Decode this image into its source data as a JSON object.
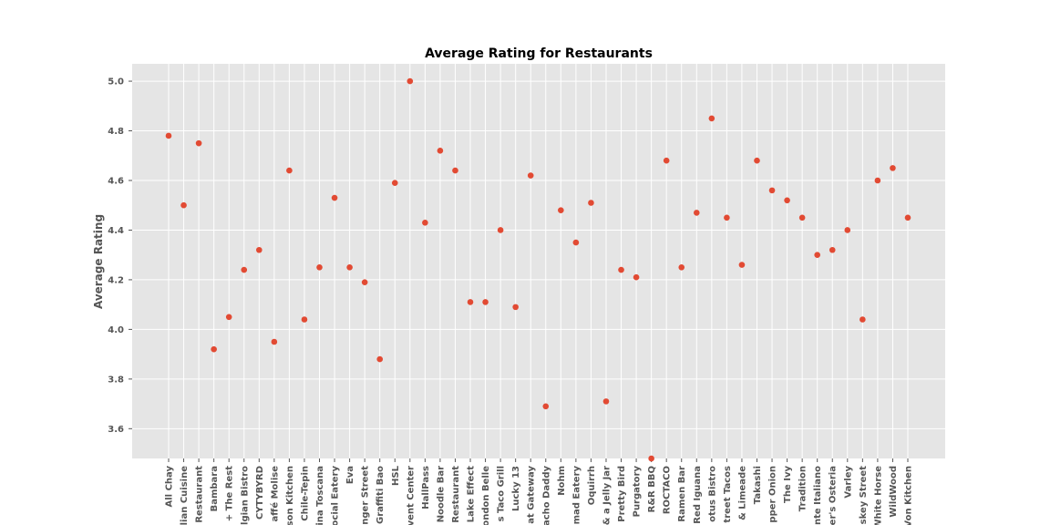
{
  "chart_data": {
    "type": "scatter",
    "title": "Average Rating for Restaurants",
    "xlabel": "",
    "ylabel": "Average Rating",
    "ylim": [
      3.48,
      5.07
    ],
    "yticks": [
      "3.6",
      "3.8",
      "4.0",
      "4.2",
      "4.4",
      "4.6",
      "4.8",
      "5.0"
    ],
    "grid": true,
    "colors": {
      "point": "#e24a33",
      "plot_bg": "#e5e5e5",
      "grid": "#ffffff"
    },
    "categories": [
      "All Chay",
      "elian Cuisine",
      "Restaurant",
      "Bambara",
      "+ The Rest",
      "lgian Bistro",
      "CYTYBYRD",
      "affé Molise",
      "son Kitchen",
      "Chile-Tepin",
      "ina Toscana",
      "ocial Eatery",
      "Eva",
      "nger Street",
      "Graffiti Bao",
      "HSL",
      "vent Center",
      "HallPass",
      "Noodle Bar",
      "Restaurant",
      "Lake Effect",
      "ondon Belle",
      "s Taco Grill",
      "Lucky 13",
      "at Gateway",
      "acho Daddy",
      "Nohm",
      "mad Eatery",
      "Oquirrh",
      "& a Jelly Jar",
      "Pretty Bird",
      "Purgatory",
      "R&R BBQ",
      "ROCTACO",
      "Ramen Bar",
      "Red Iguana",
      "otus Bistro",
      "treet Tacos",
      "& Limeade",
      "Takashi",
      "pper Onion",
      "The Ivy",
      "Tradition",
      "nte Italiano",
      "er's Osteria",
      "Varley",
      "skey Street",
      "White Horse",
      "WildWood",
      "Von Kitchen"
    ],
    "values": [
      4.78,
      4.5,
      4.75,
      3.92,
      4.05,
      4.24,
      4.32,
      3.95,
      4.64,
      4.04,
      4.25,
      4.53,
      4.25,
      4.19,
      3.88,
      4.59,
      5.0,
      4.43,
      4.72,
      4.64,
      4.11,
      4.11,
      4.4,
      4.09,
      4.62,
      3.69,
      4.48,
      4.35,
      4.51,
      3.71,
      4.24,
      4.21,
      3.48,
      4.68,
      4.25,
      4.47,
      4.85,
      4.45,
      4.26,
      4.68,
      4.56,
      4.52,
      4.45,
      4.3,
      4.32,
      4.4,
      4.04,
      4.6,
      4.65,
      4.45
    ]
  }
}
